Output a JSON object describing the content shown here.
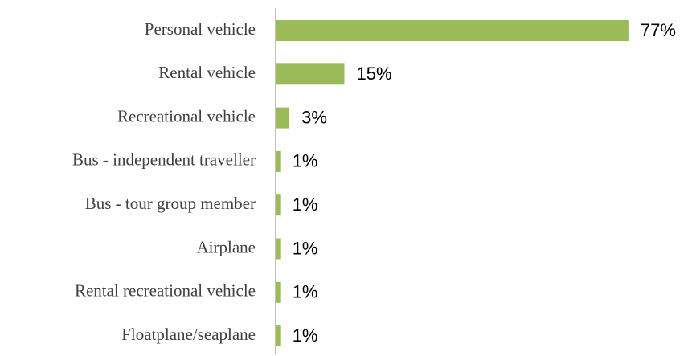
{
  "chart_data": {
    "type": "bar",
    "orientation": "horizontal",
    "categories": [
      "Personal vehicle",
      "Rental vehicle",
      "Recreational vehicle",
      "Bus - independent traveller",
      "Bus - tour group member",
      "Airplane",
      "Rental recreational vehicle",
      "Floatplane/seaplane"
    ],
    "values": [
      77,
      15,
      3,
      1,
      1,
      1,
      1,
      1
    ],
    "value_labels": [
      "77%",
      "15%",
      "3%",
      "1%",
      "1%",
      "1%",
      "1%",
      "1%"
    ],
    "color": "#9bbb59"
  }
}
